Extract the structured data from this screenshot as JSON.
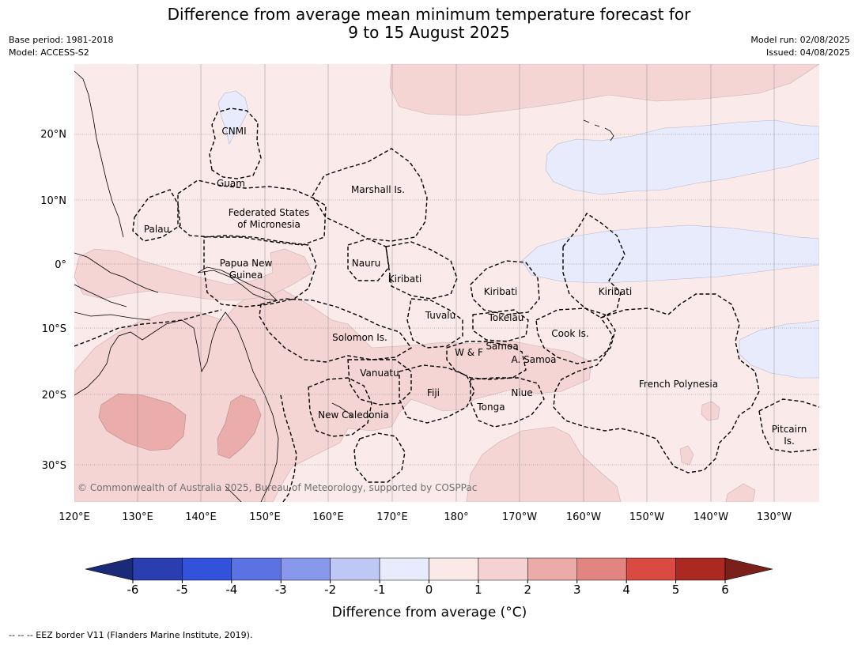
{
  "header": {
    "title_line1": "Difference from average mean minimum temperature forecast for",
    "title_line2": "9 to 15 August 2025",
    "base_period": "Base period: 1981-2018",
    "model": "Model: ACCESS-S2",
    "model_run": "Model run: 02/08/2025",
    "issued": "Issued: 04/08/2025"
  },
  "map": {
    "lat_labels": [
      "20°N",
      "10°N",
      "0°",
      "10°S",
      "20°S",
      "30°S"
    ],
    "lon_labels": [
      "120°E",
      "130°E",
      "140°E",
      "150°E",
      "160°E",
      "170°E",
      "180°",
      "170°W",
      "160°W",
      "150°W",
      "140°W",
      "130°W"
    ],
    "regions": {
      "cnmi": "CNMI",
      "guam": "Guam",
      "marshall": "Marshall Is.",
      "fsm_1": "Federated States",
      "fsm_2": "of Micronesia",
      "palau": "Palau",
      "png_1": "Papua New",
      "png_2": "Guinea",
      "nauru": "Nauru",
      "kiribati_w": "Kiribati",
      "kiribati_c": "Kiribati",
      "kiribati_e": "Kiribati",
      "tuvalu": "Tuvalu",
      "tokelau": "Tokelau",
      "cook": "Cook Is.",
      "solomon": "Solomon Is.",
      "wf": "W & F",
      "samoa": "Samoa",
      "asamoa": "A. Samoa",
      "vanuatu": "Vanuatu",
      "fiji": "Fiji",
      "niue": "Niue",
      "tonga": "Tonga",
      "frpoly": "French Polynesia",
      "newcal": "New Caledonia",
      "pitcairn_1": "Pitcairn",
      "pitcairn_2": "Is."
    },
    "copyright": "© Commonwealth of Australia 2025, Bureau of Meteorology, supported by COSPPac"
  },
  "colorbar": {
    "ticks": [
      "-6",
      "-5",
      "-4",
      "-3",
      "-2",
      "-1",
      "0",
      "1",
      "2",
      "3",
      "4",
      "5",
      "6"
    ],
    "colors": [
      "#2a3eb1",
      "#3352dc",
      "#5b72e2",
      "#8898ea",
      "#bfc8f4",
      "#e8ebfb",
      "#fbe9e8",
      "#f5d1d1",
      "#ebaba9",
      "#e28581",
      "#d94a42",
      "#aa2a22"
    ],
    "low_extend_color": "#1b2a78",
    "high_extend_color": "#7a1f1a",
    "label": "Difference from average (°C)"
  },
  "footer": "--  --  -- EEZ border V11 (Flanders Marine Institute, 2019)."
}
